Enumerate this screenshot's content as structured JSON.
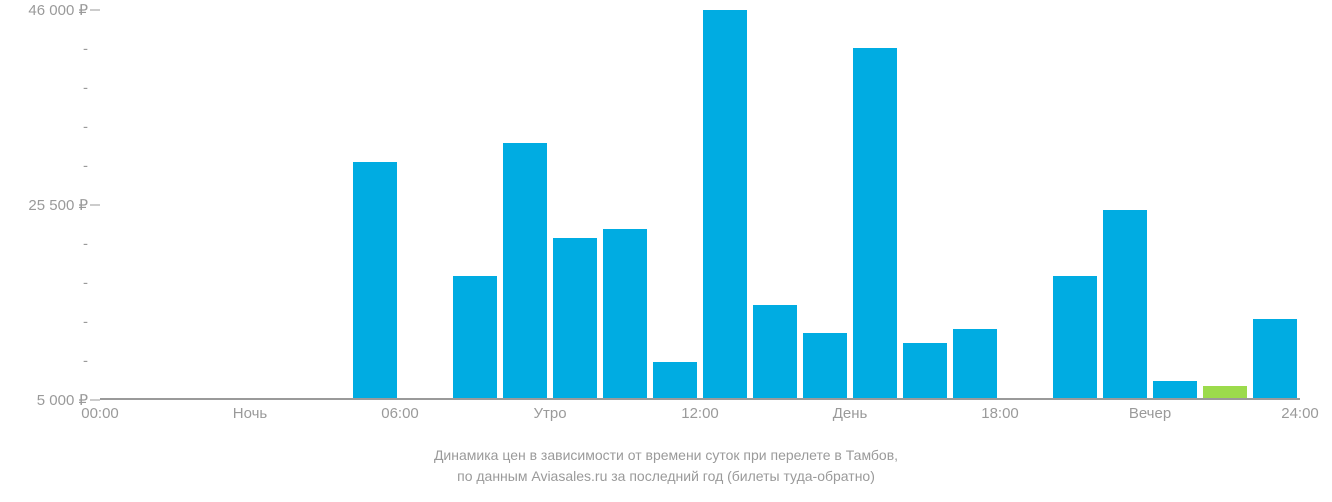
{
  "chart": {
    "type": "bar",
    "background_color": "#ffffff",
    "caption_line1": "Динамика цен в зависимости от времени суток при перелете в Тамбов,",
    "caption_line2": "по данным Aviasales.ru за последний год (билеты туда-обратно)",
    "caption_color": "#9a9a9a",
    "caption_fontsize": 14,
    "y_axis": {
      "min": 5000,
      "max": 46000,
      "major_ticks": [
        {
          "value": 46000,
          "label": "46 000 ₽"
        },
        {
          "value": 25500,
          "label": "25 500 ₽"
        },
        {
          "value": 5000,
          "label": "5 000 ₽"
        }
      ],
      "minor_tick_label": "-",
      "minor_ticks_between": 4,
      "label_color": "#9a9a9a",
      "label_fontsize": 15
    },
    "x_axis": {
      "labels": [
        {
          "pos": 0,
          "text": "00:00"
        },
        {
          "pos": 0.125,
          "text": "Ночь"
        },
        {
          "pos": 0.25,
          "text": "06:00"
        },
        {
          "pos": 0.375,
          "text": "Утро"
        },
        {
          "pos": 0.5,
          "text": "12:00"
        },
        {
          "pos": 0.625,
          "text": "День"
        },
        {
          "pos": 0.75,
          "text": "18:00"
        },
        {
          "pos": 0.875,
          "text": "Вечер"
        },
        {
          "pos": 1.0,
          "text": "24:00"
        }
      ],
      "label_color": "#9a9a9a",
      "label_fontsize": 15
    },
    "bars": {
      "count": 24,
      "default_color": "#00ace2",
      "highlight_color": "#9cdb4c",
      "values": [
        null,
        null,
        null,
        null,
        null,
        30000,
        null,
        18000,
        32000,
        22000,
        23000,
        9000,
        46000,
        15000,
        12000,
        42000,
        11000,
        12500,
        null,
        18000,
        25000,
        7000,
        6500,
        13500
      ],
      "highlight_index": 22
    }
  }
}
